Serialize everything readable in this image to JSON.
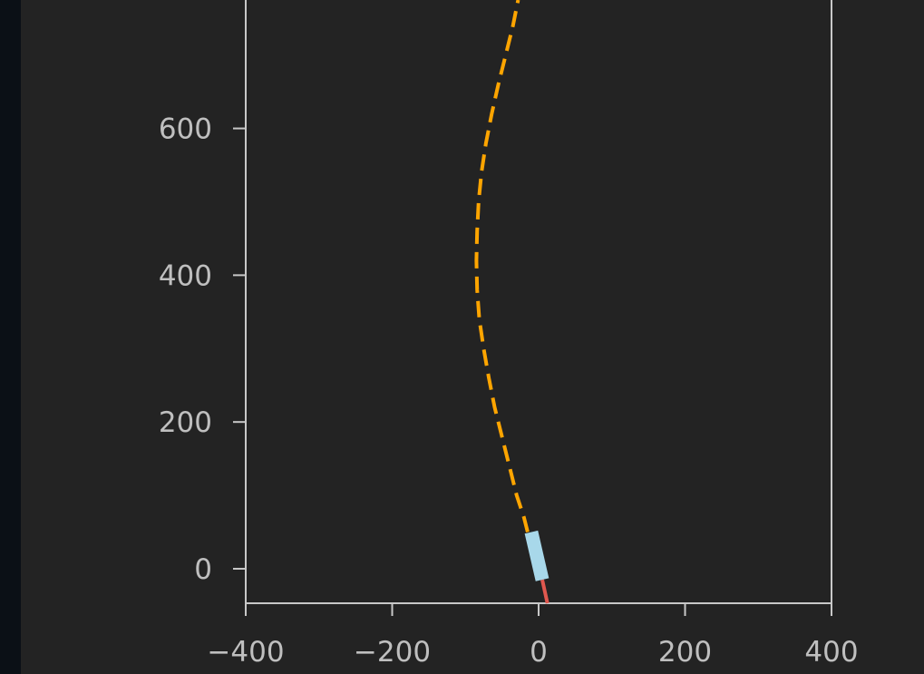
{
  "chart_data": {
    "type": "line",
    "title": "",
    "xlabel": "",
    "ylabel": "",
    "xlim": [
      -400,
      400
    ],
    "ylim": [
      -47,
      775
    ],
    "grid": false,
    "x_ticks": [
      {
        "value": -400,
        "label": "−400"
      },
      {
        "value": -200,
        "label": "−200"
      },
      {
        "value": 0,
        "label": "0"
      },
      {
        "value": 200,
        "label": "200"
      },
      {
        "value": 400,
        "label": "400"
      }
    ],
    "y_ticks": [
      {
        "value": 0,
        "label": "0"
      },
      {
        "value": 200,
        "label": "200"
      },
      {
        "value": 400,
        "label": "400"
      },
      {
        "value": 600,
        "label": "600"
      }
    ],
    "series": [
      {
        "style": "dashed",
        "color": "#ffa500",
        "x": [
          -15,
          -20,
          -30,
          -40,
          -50,
          -60,
          -68,
          -75,
          -81,
          -84,
          -85,
          -84,
          -82,
          -78,
          -72,
          -64,
          -55,
          -45,
          -35,
          -28
        ],
        "y": [
          50,
          70,
          100,
          140,
          180,
          220,
          260,
          300,
          340,
          380,
          420,
          460,
          500,
          540,
          580,
          620,
          660,
          700,
          740,
          775
        ]
      },
      {
        "style": "solid",
        "color": "#e0584f",
        "x": [
          5,
          12
        ],
        "y": [
          -15,
          -47
        ]
      }
    ],
    "vehicle": {
      "color": "#a8d8ea",
      "x": [
        -10,
        5
      ],
      "y": [
        50,
        -15
      ]
    }
  }
}
